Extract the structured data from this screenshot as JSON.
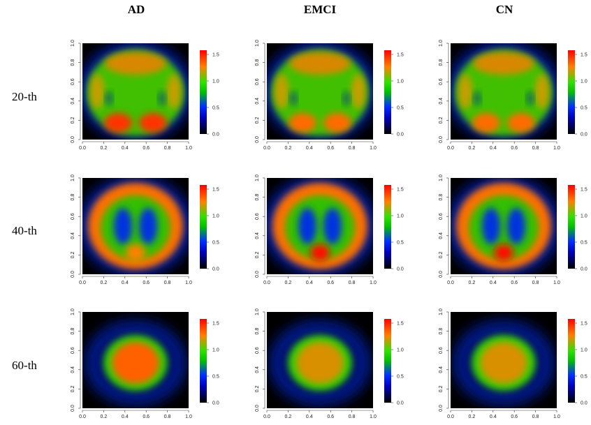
{
  "columns": [
    "AD",
    "EMCI",
    "CN"
  ],
  "rows": [
    "20-th",
    "40-th",
    "60-th"
  ],
  "axis_ticks": [
    "0.0",
    "0.2",
    "0.4",
    "0.6",
    "0.8",
    "1.0"
  ],
  "colorbar_ticks": [
    "0.0",
    "0.5",
    "1.0",
    "1.5"
  ]
}
